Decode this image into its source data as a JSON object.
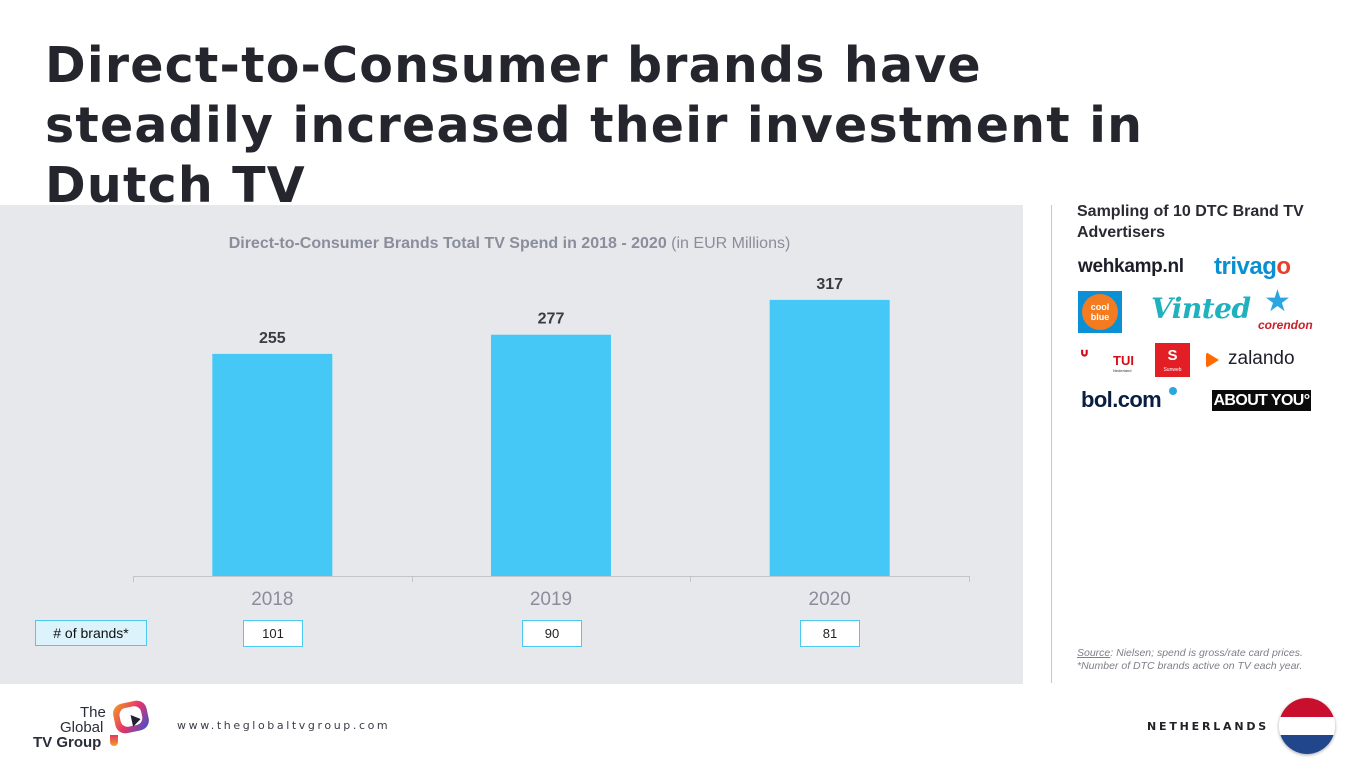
{
  "slide": {
    "title": "Direct-to-Consumer brands have steadily increased their investment in Dutch TV"
  },
  "chart_data": {
    "type": "bar",
    "title": "Direct-to-Consumer Brands Total TV Spend in 2018 - 2020",
    "subtitle": "(in EUR Millions)",
    "categories": [
      "2018",
      "2019",
      "2020"
    ],
    "values": [
      255,
      277,
      317
    ],
    "ylim": [
      0,
      320
    ],
    "grid": false,
    "bar_color": "#45c8f5",
    "brands_label": "# of brands*",
    "brand_counts": [
      "101",
      "90",
      "81"
    ]
  },
  "sidebar": {
    "heading": "Sampling of 10 DTC Brand TV Advertisers",
    "logos": {
      "wehkamp": "wehkamp.nl",
      "trivago_main": "trivag",
      "trivago_end": "o",
      "coolblue_line1": "cool",
      "coolblue_line2": "blue",
      "vinted": "Vinted",
      "corendon": "corendon",
      "tui": "TUI",
      "tui_sub": "Nederland",
      "sunweb": "S",
      "sunweb_sub": "Sunweb",
      "zalando": "zalando",
      "bol": "bol.com",
      "aboutyou": "ABOUT YOU°"
    },
    "source_key": "Source",
    "source_text": ": Nielsen; spend is gross/rate card prices.",
    "footnote": "*Number of DTC brands active on TV each year."
  },
  "footer": {
    "logo_line1": "The",
    "logo_line2": "Global",
    "logo_line3": "TV Group",
    "website": "www.theglobaltvgroup.com",
    "country": "NETHERLANDS"
  }
}
